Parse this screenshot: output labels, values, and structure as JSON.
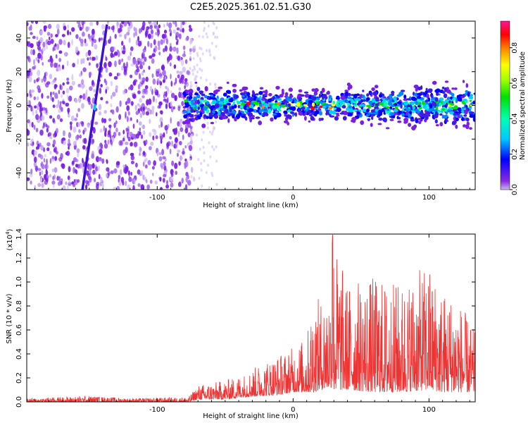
{
  "title": "C2E5.2025.361.02.51.G30",
  "colors": {
    "signal_line": "#ee3333",
    "noise_purple": "#7a1fe6",
    "background": "#ffffff"
  },
  "chart_data": [
    {
      "type": "heatmap",
      "xlabel": "Height of straight line (km)",
      "ylabel": "Frequency (Hz)",
      "xlim": [
        -196,
        134
      ],
      "ylim": [
        -50,
        50
      ],
      "xticks": [
        -100,
        0,
        100
      ],
      "xtick_labels": [
        "-100",
        "0",
        "100"
      ],
      "yticks": [
        -40,
        -20,
        0,
        20,
        40
      ],
      "ytick_labels": [
        "-40",
        "-20",
        "0",
        "20",
        "40"
      ],
      "features": [
        {
          "name": "broadband noise region",
          "x_range": [
            -196,
            -76
          ],
          "y_range": [
            -50,
            50
          ]
        },
        {
          "name": "sloped track",
          "x": [
            -155,
            -137
          ],
          "y": [
            -50,
            48
          ]
        },
        {
          "name": "signal band",
          "x_range": [
            -80,
            134
          ],
          "center_y": 0,
          "halfwidth_y": 7
        }
      ],
      "colorbar": {
        "label": "Normalized spectral amplitude",
        "range": [
          0,
          0.95
        ],
        "ticks": [
          0.0,
          0.2,
          0.4,
          0.6,
          0.8
        ],
        "tick_labels": [
          "0.0",
          "0.2",
          "0.4",
          "0.6",
          "0.8"
        ]
      }
    },
    {
      "type": "line",
      "xlabel": "Height of straight line (km)",
      "ylabel": "SNR (10 * v/v)",
      "yscale_label": "(x10",
      "yscale_exp": "4",
      "yscale_close": ")",
      "xlim": [
        -196,
        134
      ],
      "ylim": [
        0,
        1.4
      ],
      "xticks": [
        -100,
        0,
        100
      ],
      "xtick_labels": [
        "-100",
        "0",
        "100"
      ],
      "yticks": [
        0,
        0.2,
        0.4,
        0.6,
        0.8,
        1.0,
        1.2,
        1.4
      ],
      "ytick_labels": [
        "0.0",
        "0.2",
        "0.4",
        "0.6",
        "0.8",
        "1.0",
        "1.2",
        "1.4"
      ],
      "envelope": {
        "x": [
          -196,
          -150,
          -120,
          -77,
          -70,
          -50,
          -35,
          -20,
          -10,
          0,
          10,
          15,
          20,
          28,
          29,
          40,
          60,
          70,
          80,
          100,
          110,
          120,
          134
        ],
        "y_min": [
          0,
          0,
          0,
          0,
          0.02,
          0.02,
          0.04,
          0.05,
          0.06,
          0.08,
          0.08,
          0.08,
          0.1,
          0.12,
          0.1,
          0.1,
          0.08,
          0.08,
          0.08,
          0.1,
          0.08,
          0.08,
          0.08
        ],
        "y_max": [
          0.03,
          0.05,
          0.03,
          0.04,
          0.14,
          0.18,
          0.24,
          0.35,
          0.4,
          0.46,
          0.55,
          0.9,
          0.85,
          1.05,
          1.4,
          1.0,
          1.05,
          1.0,
          1.0,
          1.15,
          0.95,
          0.9,
          0.58
        ]
      }
    }
  ]
}
